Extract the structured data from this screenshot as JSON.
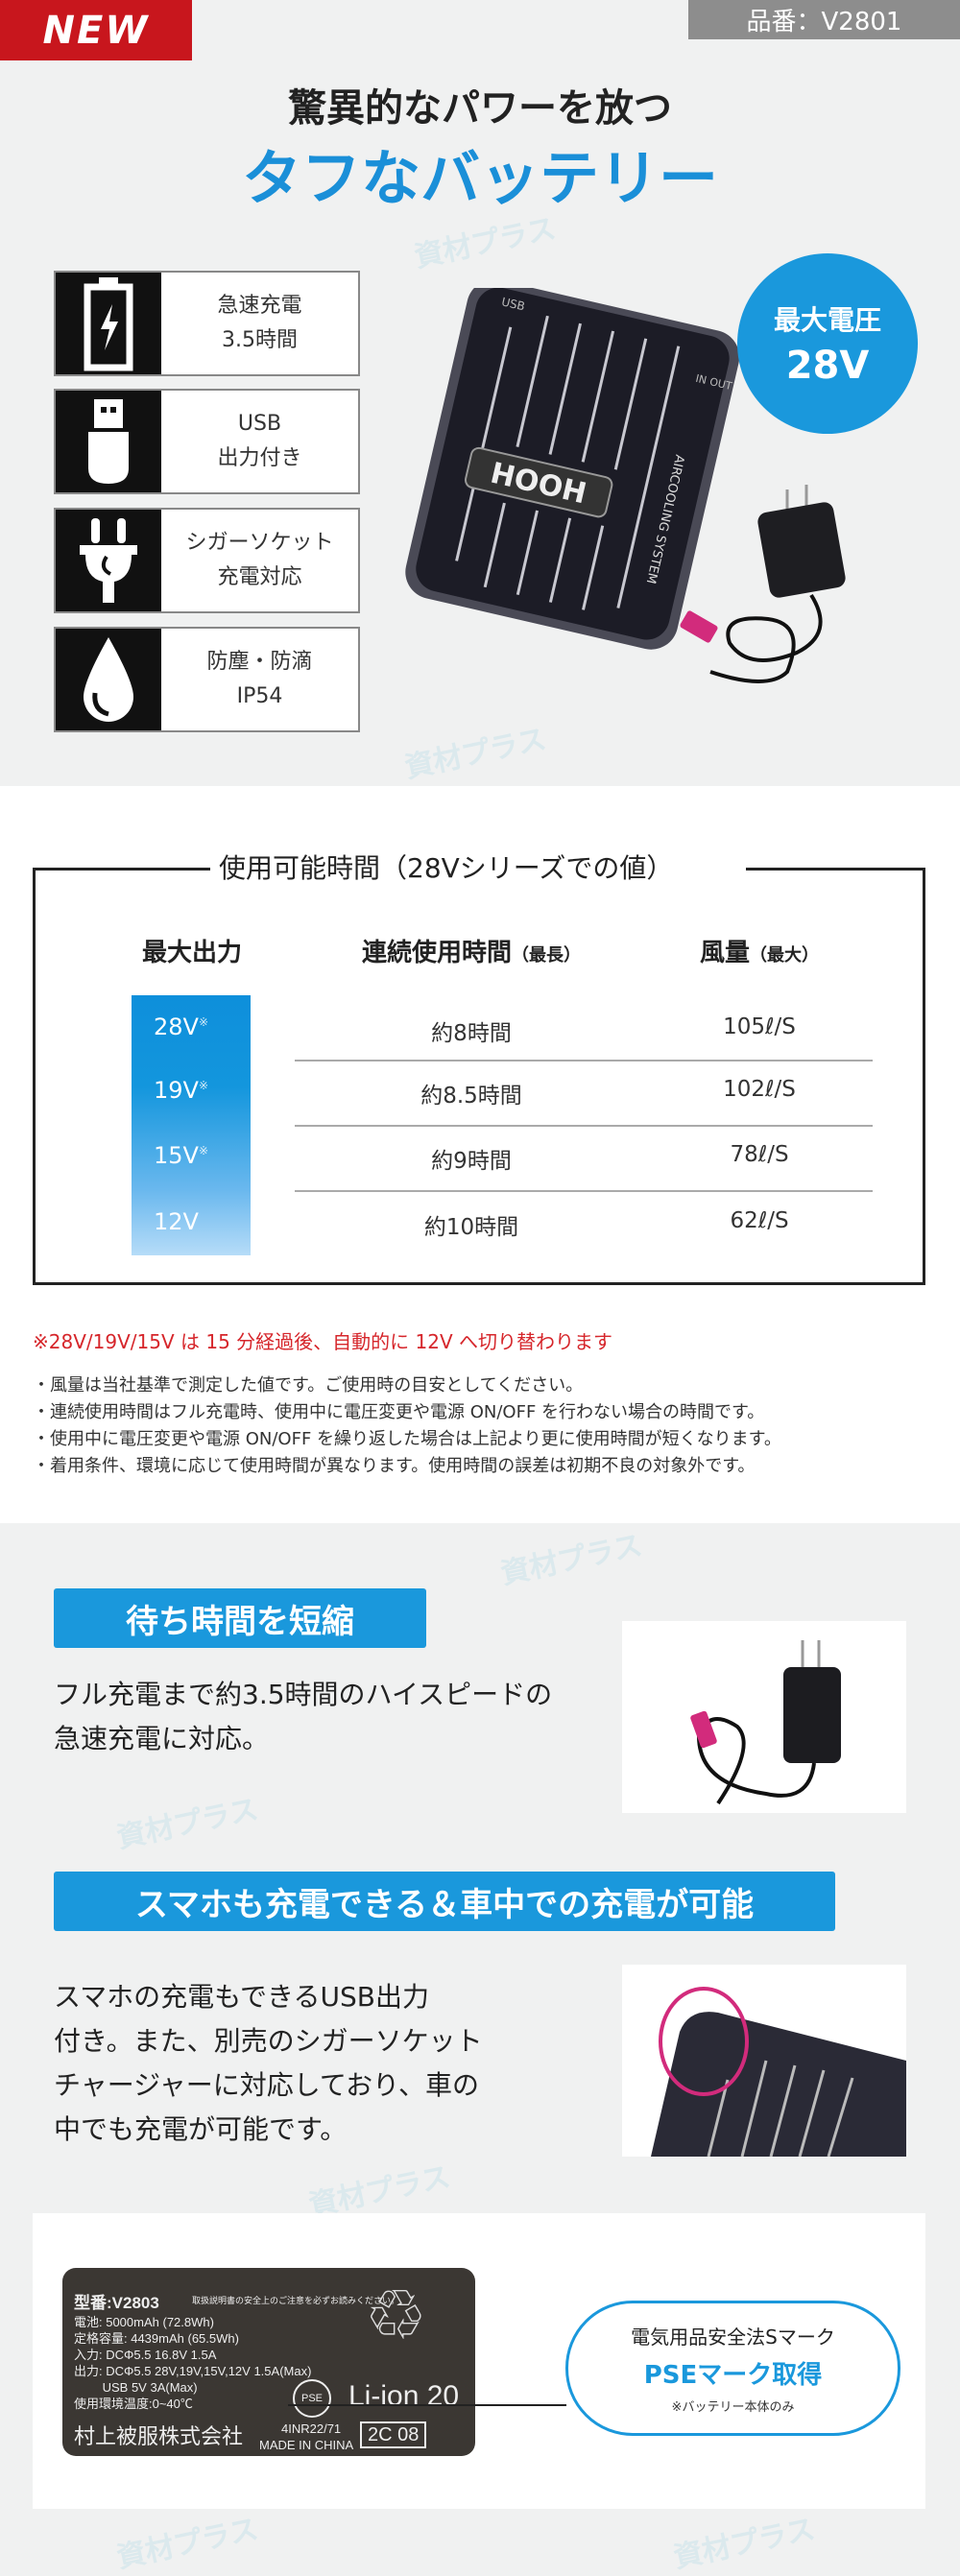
{
  "watermark": "資材プラス",
  "badge_new": "NEW",
  "product_code": "品番：V2801",
  "headline": "驚異的なパワーを放つ",
  "subheadline": "タフなバッテリー",
  "features": [
    {
      "icon": "battery-charging-icon",
      "line1": "急速充電",
      "line2": "3.5時間"
    },
    {
      "icon": "usb-icon",
      "line1": "USB",
      "line2": "出力付き"
    },
    {
      "icon": "plug-icon",
      "line1": "シガーソケット",
      "line2": "充電対応"
    },
    {
      "icon": "water-drop-icon",
      "line1": "防塵・防滴",
      "line2": "IP54"
    }
  ],
  "max_voltage": {
    "label": "最大電圧",
    "value": "28V"
  },
  "product_image": {
    "brand": "HOOH",
    "side_text": "AIRCOOLING SYSTEM",
    "port_usb": "USB",
    "port_inout": "IN OUT"
  },
  "table": {
    "title": "使用可能時間（28Vシリーズでの値）",
    "headers": [
      {
        "main": "最大出力",
        "sub": ""
      },
      {
        "main": "連続使用時間",
        "sub": "（最長）"
      },
      {
        "main": "風量",
        "sub": "（最大）"
      }
    ],
    "rows": [
      {
        "voltage": "28V",
        "mark": "※",
        "time": "約8時間",
        "airflow": "105ℓ/S"
      },
      {
        "voltage": "19V",
        "mark": "※",
        "time": "約8.5時間",
        "airflow": "102ℓ/S"
      },
      {
        "voltage": "15V",
        "mark": "※",
        "time": "約9時間",
        "airflow": "78ℓ/S"
      },
      {
        "voltage": "12V",
        "mark": "",
        "time": "約10時間",
        "airflow": "62ℓ/S"
      }
    ]
  },
  "note_red": "※28V/19V/15V は 15 分経過後、自動的に 12V へ切り替わります",
  "notes": [
    "・風量は当社基準で測定した値です。ご使用時の目安としてください。",
    "・連続使用時間はフル充電時、使用中に電圧変更や電源 ON/OFF を行わない場合の時間です。",
    "・使用中に電圧変更や電源 ON/OFF を繰り返した場合は上記より更に使用時間が短くなります。",
    "・着用条件、環境に応じて使用時間が異なります。使用時間の誤差は初期不良の対象外です。"
  ],
  "section1": {
    "label": "待ち時間を短縮",
    "lines": [
      "フル充電まで約3.5時間のハイスピードの",
      "急速充電に対応。"
    ]
  },
  "section2": {
    "label": "スマホも充電できる＆車中での充電が可能",
    "lines": [
      "スマホの充電もできるUSB出力",
      "付き。また、別売のシガーソケット",
      "チャージャーに対応しており、車の",
      "中でも充電が可能です。"
    ]
  },
  "rating_plate": {
    "model": "型番:V2803",
    "caution": "取扱説明書の安全上のご注意を必ずお読みください。",
    "lines": [
      "電池: 5000mAh (72.8Wh)",
      "定格容量: 4439mAh (65.5Wh)",
      "入力: DCΦ5.5 16.8V 1.5A",
      "出力: DCΦ5.5 28V,19V,15V,12V 1.5A(Max)",
      "　　 USB 5V 3A(Max)",
      "使用環境温度:0~40℃"
    ],
    "maker": "村上被服株式会社",
    "cell_code": "4INR22/71",
    "origin": "MADE IN CHINA",
    "liion": "Li-ion 20",
    "lot": "2C 08",
    "pse": "PSE"
  },
  "pse_callout": {
    "line1": "電気用品安全法Sマーク",
    "line2": "PSEマーク取得",
    "line3": "※バッテリー本体のみ"
  },
  "colors": {
    "accent": "#1a98dc",
    "new_badge": "#c8161d",
    "note_red": "#d6262b"
  }
}
